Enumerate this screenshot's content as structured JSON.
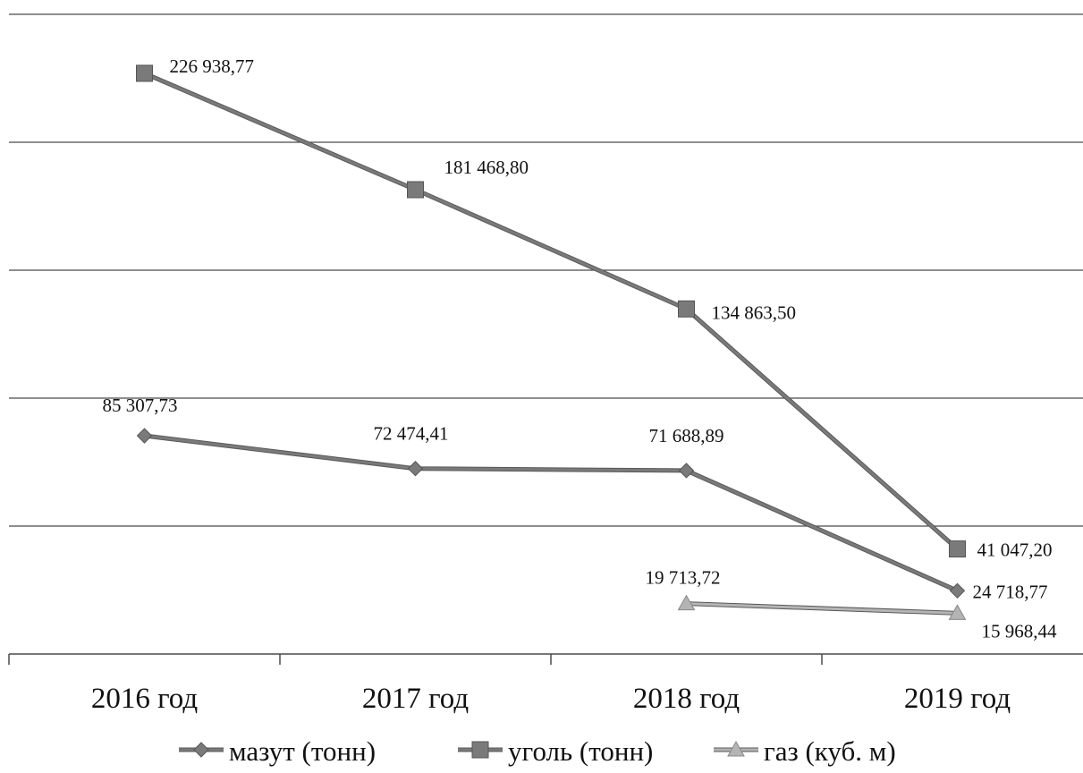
{
  "chart_data": {
    "type": "line",
    "title": "",
    "xlabel": "",
    "ylabel": "",
    "categories": [
      "2016 год",
      "2017 год",
      "2018 год",
      "2019 год"
    ],
    "ylim": [
      0,
      250000
    ],
    "grid": true,
    "legend_position": "bottom",
    "series": [
      {
        "name": "мазут (тонн)",
        "marker": "diamond",
        "color": "#7a7a7a",
        "values": [
          85307.73,
          72474.41,
          71688.89,
          24718.77
        ],
        "labels": [
          "85 307,73",
          "72 474,41",
          "71 688,89",
          "24 718,77"
        ]
      },
      {
        "name": "уголь (тонн)",
        "marker": "square",
        "color": "#7a7a7a",
        "values": [
          226938.77,
          181468.8,
          134863.5,
          41047.2
        ],
        "labels": [
          "226 938,77",
          "181 468,80",
          "134 863,50",
          "41 047,20"
        ]
      },
      {
        "name": "газ (куб. м)",
        "marker": "triangle",
        "color": "#b4b4b4",
        "values": [
          null,
          null,
          19713.72,
          15968.44
        ],
        "labels": [
          "",
          "",
          "19 713,72",
          "15 968,44"
        ]
      }
    ]
  }
}
